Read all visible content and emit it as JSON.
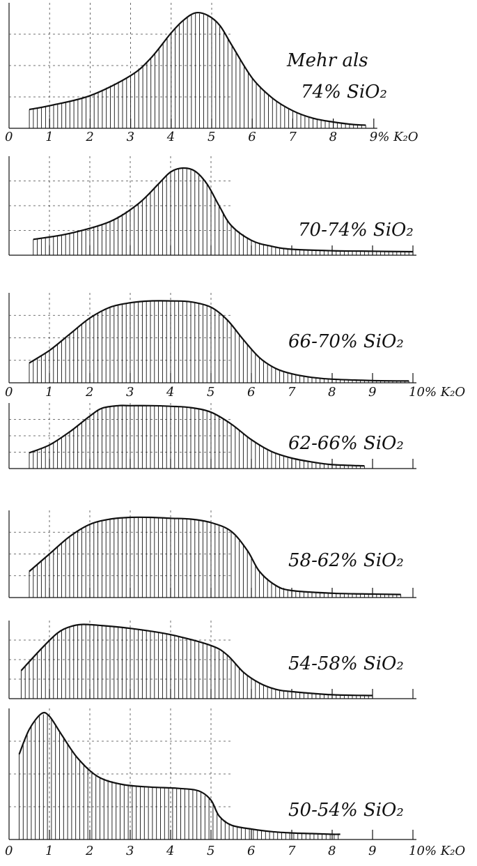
{
  "chart_data": [
    {
      "type": "area",
      "title": [
        "Mehr als",
        "74% SiO₂"
      ],
      "x_tick_labels": [
        "0",
        "1",
        "2",
        "3",
        "4",
        "5",
        "6",
        "7",
        "8",
        "9% K₂O"
      ],
      "xlim": [
        0,
        9
      ],
      "x": [
        0.5,
        1.0,
        2.0,
        3.0,
        3.5,
        4.0,
        4.3,
        4.6,
        4.9,
        5.2,
        5.5,
        6.0,
        6.5,
        7.0,
        7.5,
        8.0,
        8.5,
        8.8
      ],
      "y": [
        1.5,
        1.8,
        2.6,
        4.2,
        5.6,
        7.6,
        8.6,
        9.2,
        9.0,
        8.2,
        6.6,
        4.0,
        2.4,
        1.4,
        0.8,
        0.5,
        0.3,
        0.25
      ],
      "grid": true
    },
    {
      "type": "area",
      "title": [
        "70-74% SiO₂"
      ],
      "x_tick_labels": [],
      "xlim": [
        0,
        10
      ],
      "x": [
        0.6,
        1.5,
        2.5,
        3.2,
        3.7,
        4.0,
        4.3,
        4.6,
        4.9,
        5.2,
        5.5,
        6.0,
        6.5,
        7.0,
        8.0,
        9.0,
        10.0
      ],
      "y": [
        1.6,
        2.2,
        3.4,
        5.2,
        7.2,
        8.4,
        8.8,
        8.5,
        7.2,
        5.0,
        3.0,
        1.5,
        0.9,
        0.6,
        0.45,
        0.4,
        0.35
      ],
      "grid": true
    },
    {
      "type": "area",
      "title": [
        "66-70% SiO₂"
      ],
      "x_tick_labels": [
        "0",
        "1",
        "2",
        "3",
        "4",
        "5",
        "6",
        "7",
        "8",
        "9",
        "10% K₂O"
      ],
      "xlim": [
        0,
        10
      ],
      "x": [
        0.5,
        1.0,
        1.5,
        2.0,
        2.5,
        3.0,
        3.5,
        4.0,
        4.5,
        5.0,
        5.4,
        5.8,
        6.2,
        6.6,
        7.0,
        7.5,
        8.0,
        9.0,
        9.9
      ],
      "y": [
        2.2,
        3.6,
        5.4,
        7.2,
        8.4,
        8.9,
        9.1,
        9.1,
        9.0,
        8.4,
        7.0,
        4.8,
        2.8,
        1.6,
        1.0,
        0.6,
        0.4,
        0.25,
        0.2
      ],
      "grid": true
    },
    {
      "type": "area",
      "title": [
        "62-66% SiO₂"
      ],
      "x_tick_labels": [],
      "xlim": [
        0,
        10
      ],
      "x": [
        0.5,
        1.0,
        1.5,
        2.0,
        2.3,
        2.7,
        3.0,
        3.5,
        4.0,
        4.5,
        5.0,
        5.5,
        6.0,
        6.5,
        7.0,
        7.5,
        8.0,
        8.8
      ],
      "y": [
        2.4,
        3.6,
        5.6,
        8.0,
        9.2,
        9.6,
        9.6,
        9.6,
        9.5,
        9.3,
        8.6,
        6.8,
        4.4,
        2.6,
        1.6,
        1.0,
        0.6,
        0.4
      ],
      "grid": true
    },
    {
      "type": "area",
      "title": [
        "58-62% SiO₂"
      ],
      "x_tick_labels": [],
      "xlim": [
        0,
        10
      ],
      "x": [
        0.5,
        1.0,
        1.5,
        2.0,
        2.5,
        3.0,
        3.5,
        4.0,
        4.5,
        5.0,
        5.5,
        5.9,
        6.2,
        6.6,
        7.0,
        8.0,
        9.0,
        9.7
      ],
      "y": [
        3.0,
        5.0,
        7.0,
        8.4,
        9.0,
        9.2,
        9.2,
        9.1,
        9.0,
        8.6,
        7.6,
        5.4,
        3.0,
        1.4,
        0.8,
        0.5,
        0.4,
        0.35
      ],
      "grid": true
    },
    {
      "type": "area",
      "title": [
        "54-58% SiO₂"
      ],
      "x_tick_labels": [],
      "xlim": [
        0,
        10
      ],
      "x": [
        0.3,
        0.8,
        1.2,
        1.5,
        1.8,
        2.2,
        3.0,
        4.0,
        5.0,
        5.4,
        5.8,
        6.2,
        6.6,
        7.0,
        8.0,
        9.0
      ],
      "y": [
        3.6,
        6.4,
        8.4,
        9.2,
        9.5,
        9.4,
        9.0,
        8.2,
        6.8,
        5.6,
        3.4,
        2.0,
        1.2,
        0.9,
        0.5,
        0.4
      ],
      "grid": true
    },
    {
      "type": "area",
      "title": [
        "50-54% SiO₂"
      ],
      "x_tick_labels": [
        "0",
        "1",
        "2",
        "3",
        "4",
        "5",
        "6",
        "7",
        "8",
        "9",
        "10% K₂O"
      ],
      "xlim": [
        0,
        10
      ],
      "x": [
        0.25,
        0.5,
        0.8,
        1.0,
        1.3,
        1.7,
        2.2,
        2.8,
        3.5,
        4.2,
        4.7,
        5.0,
        5.2,
        5.5,
        6.0,
        6.5,
        7.0,
        7.5,
        8.0,
        8.2
      ],
      "y": [
        6.5,
        8.4,
        9.6,
        9.4,
        8.0,
        6.2,
        4.8,
        4.2,
        4.0,
        3.9,
        3.7,
        3.0,
        1.8,
        1.1,
        0.8,
        0.6,
        0.5,
        0.45,
        0.4,
        0.4
      ],
      "grid": true
    }
  ]
}
